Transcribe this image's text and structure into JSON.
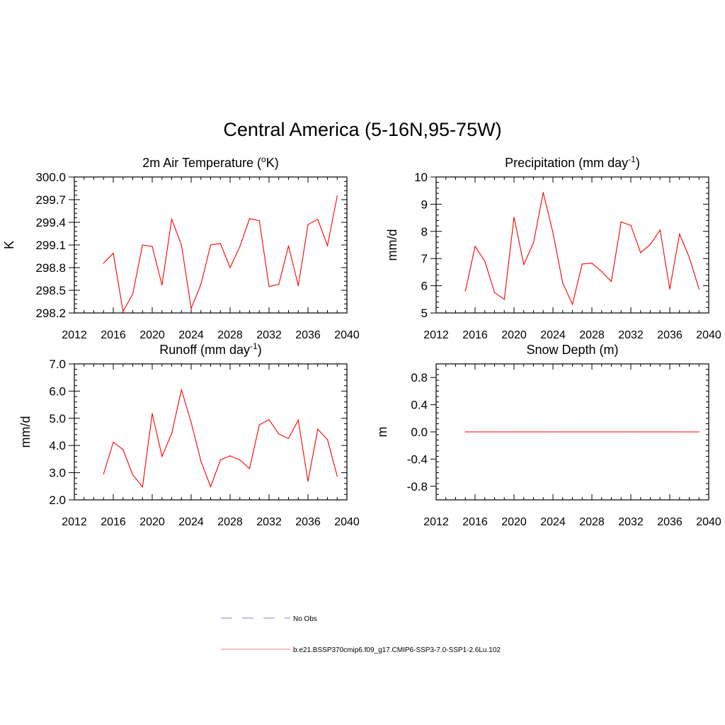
{
  "figure": {
    "title": "Central America (5-16N,95-75W)"
  },
  "legend": {
    "items": [
      {
        "label": "No Obs",
        "color": "#9c9cdc",
        "dashed": true
      },
      {
        "label": "b.e21.BSSP370cmip6.f09_g17.CMIP6-SSP3-7.0-SSP1-2.6Lu.102",
        "color": "#f29c9c",
        "dashed": false
      }
    ]
  },
  "chart_data": [
    {
      "type": "line",
      "title": "2m Air Temperature (°K)",
      "title_main": "2m Air Temperature (",
      "title_sup": "o",
      "title_tail": "K)",
      "ylabel": "K",
      "xlim": [
        2012,
        2040
      ],
      "xticks": [
        2012,
        2016,
        2020,
        2024,
        2028,
        2032,
        2036,
        2040
      ],
      "ylim": [
        298.2,
        300.0
      ],
      "yticks": [
        "298.2",
        "298.5",
        "298.8",
        "299.1",
        "299.4",
        "299.7",
        "300.0"
      ],
      "line_color": "#ff0000",
      "series": [
        {
          "x": [
            2015,
            2016,
            2017,
            2018,
            2019,
            2020,
            2021,
            2022,
            2023,
            2024,
            2025,
            2026,
            2027,
            2028,
            2029,
            2030,
            2031,
            2032,
            2033,
            2034,
            2035,
            2036,
            2037,
            2038,
            2039
          ],
          "values": [
            298.86,
            298.99,
            298.22,
            298.45,
            299.1,
            299.08,
            298.57,
            299.44,
            299.1,
            298.26,
            298.58,
            299.1,
            299.12,
            298.8,
            299.08,
            299.45,
            299.42,
            298.55,
            298.58,
            299.09,
            298.56,
            299.37,
            299.44,
            299.09,
            299.75
          ]
        }
      ]
    },
    {
      "type": "line",
      "title": "Precipitation (mm day-1)",
      "title_main": "Precipitation (mm day",
      "title_sup": "-1",
      "title_tail": ")",
      "ylabel": "mm/d",
      "xlim": [
        2012,
        2040
      ],
      "xticks": [
        2012,
        2016,
        2020,
        2024,
        2028,
        2032,
        2036,
        2040
      ],
      "ylim": [
        5,
        10
      ],
      "yticks": [
        "5",
        "6",
        "7",
        "8",
        "9",
        "10"
      ],
      "line_color": "#ff0000",
      "series": [
        {
          "x": [
            2015,
            2016,
            2017,
            2018,
            2019,
            2020,
            2021,
            2022,
            2023,
            2024,
            2025,
            2026,
            2027,
            2028,
            2029,
            2030,
            2031,
            2032,
            2033,
            2034,
            2035,
            2036,
            2037,
            2038,
            2039
          ],
          "values": [
            5.8,
            7.45,
            6.9,
            5.75,
            5.5,
            8.52,
            6.78,
            7.58,
            9.43,
            7.95,
            6.1,
            5.32,
            6.8,
            6.83,
            6.52,
            6.16,
            8.35,
            8.22,
            7.22,
            7.52,
            8.05,
            5.88,
            7.9,
            7.05,
            5.88
          ]
        }
      ]
    },
    {
      "type": "line",
      "title": "Runoff (mm day-1)",
      "title_main": "Runoff (mm day",
      "title_sup": "-1",
      "title_tail": ")",
      "ylabel": "mm/d",
      "xlim": [
        2012,
        2040
      ],
      "xticks": [
        2012,
        2016,
        2020,
        2024,
        2028,
        2032,
        2036,
        2040
      ],
      "ylim": [
        2.0,
        7.0
      ],
      "yticks": [
        "2.0",
        "3.0",
        "4.0",
        "5.0",
        "6.0",
        "7.0"
      ],
      "line_color": "#ff0000",
      "series": [
        {
          "x": [
            2015,
            2016,
            2017,
            2018,
            2019,
            2020,
            2021,
            2022,
            2023,
            2024,
            2025,
            2026,
            2027,
            2028,
            2029,
            2030,
            2031,
            2032,
            2033,
            2034,
            2035,
            2036,
            2037,
            2038,
            2039
          ],
          "values": [
            2.95,
            4.12,
            3.85,
            2.92,
            2.48,
            5.18,
            3.6,
            4.44,
            6.05,
            4.85,
            3.42,
            2.48,
            3.47,
            3.62,
            3.47,
            3.15,
            4.76,
            4.95,
            4.42,
            4.26,
            4.93,
            2.68,
            4.6,
            4.22,
            2.87
          ]
        }
      ]
    },
    {
      "type": "line",
      "title": "Snow Depth (m)",
      "title_main": "Snow Depth (m)",
      "title_sup": "",
      "title_tail": "",
      "ylabel": "m",
      "xlim": [
        2012,
        2040
      ],
      "xticks": [
        2012,
        2016,
        2020,
        2024,
        2028,
        2032,
        2036,
        2040
      ],
      "ylim": [
        -1.0,
        1.0
      ],
      "yticks": [
        "-0.8",
        "-0.4",
        "0.0",
        "0.4",
        "0.8"
      ],
      "ytick_values": [
        -0.8,
        -0.4,
        0.0,
        0.4,
        0.8
      ],
      "line_color": "#ff0000",
      "series": [
        {
          "x": [
            2015,
            2016,
            2017,
            2018,
            2019,
            2020,
            2021,
            2022,
            2023,
            2024,
            2025,
            2026,
            2027,
            2028,
            2029,
            2030,
            2031,
            2032,
            2033,
            2034,
            2035,
            2036,
            2037,
            2038,
            2039
          ],
          "values": [
            0,
            0,
            0,
            0,
            0,
            0,
            0,
            0,
            0,
            0,
            0,
            0,
            0,
            0,
            0,
            0,
            0,
            0,
            0,
            0,
            0,
            0,
            0,
            0,
            0
          ]
        }
      ]
    }
  ]
}
